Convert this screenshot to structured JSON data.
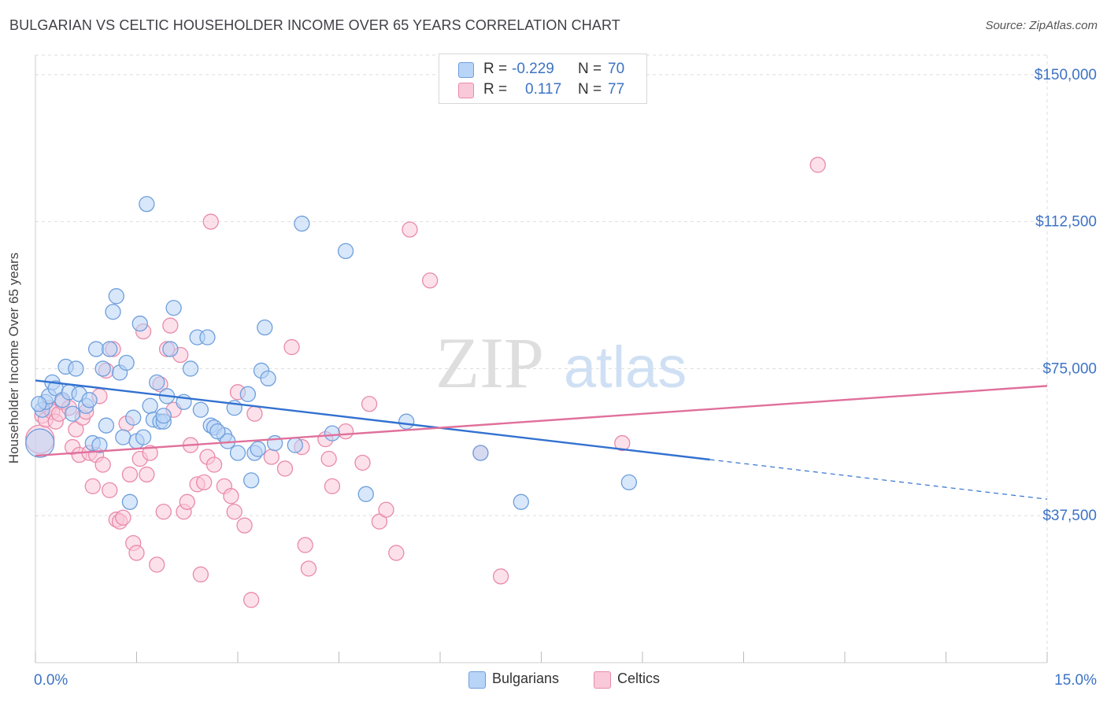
{
  "header": {
    "title": "BULGARIAN VS CELTIC HOUSEHOLDER INCOME OVER 65 YEARS CORRELATION CHART",
    "source": "Source: ZipAtlas.com"
  },
  "watermark": {
    "part1": "ZIP",
    "part2": "atlas"
  },
  "legend_top": {
    "rows": [
      {
        "r_label": "R =",
        "r_value": "-0.229",
        "n_label": "N =",
        "n_value": "70"
      },
      {
        "r_label": "R =",
        "r_value": "0.117",
        "n_label": "N =",
        "n_value": "77"
      }
    ]
  },
  "legend_bottom": {
    "items": [
      "Bulgarians",
      "Celtics"
    ]
  },
  "colors": {
    "blue_fill": "#b8d4f6",
    "blue_stroke": "#6f9fdc",
    "blue_line": "#3271d0",
    "pink_fill": "#f9c9d9",
    "pink_stroke": "#e98aab",
    "pink_line": "#e0709b",
    "tick_label": "#3d73c5",
    "grid": "#dddddd"
  },
  "chart_data": {
    "type": "scatter",
    "title": "BULGARIAN VS CELTIC HOUSEHOLDER INCOME OVER 65 YEARS CORRELATION CHART",
    "xlabel": "",
    "ylabel": "Householder Income Over 65 years",
    "xlim": [
      0,
      15
    ],
    "ylim": [
      0,
      155000
    ],
    "x_tick_labels": [
      {
        "value": 0,
        "label": "0.0%"
      },
      {
        "value": 15,
        "label": "15.0%"
      }
    ],
    "x_minor_ticks": [
      0,
      1.5,
      3,
      4.5,
      6,
      7.5,
      9,
      10.5,
      12,
      13.5,
      15
    ],
    "y_ticks": [
      {
        "value": 37500,
        "label": "$37,500"
      },
      {
        "value": 75000,
        "label": "$75,000"
      },
      {
        "value": 112500,
        "label": "$112,500"
      },
      {
        "value": 150000,
        "label": "$150,000"
      }
    ],
    "grid": true,
    "legend_position": "top-center",
    "series": [
      {
        "name": "Bulgarians",
        "color": "#6f9fdc",
        "R": -0.229,
        "N": 70,
        "trend": {
          "x": [
            0,
            10.0
          ],
          "y": [
            72000,
            51800
          ],
          "dashed_to_x": 15,
          "dashed_end_y": 41700
        },
        "points": [
          [
            0.02,
            56000
          ],
          [
            0.1,
            64500
          ],
          [
            0.15,
            66500
          ],
          [
            0.2,
            68000
          ],
          [
            0.25,
            71500
          ],
          [
            0.3,
            70000
          ],
          [
            0.4,
            67000
          ],
          [
            0.45,
            75500
          ],
          [
            0.5,
            69000
          ],
          [
            0.6,
            75000
          ],
          [
            0.65,
            68500
          ],
          [
            0.75,
            65500
          ],
          [
            0.8,
            67000
          ],
          [
            0.85,
            56000
          ],
          [
            0.9,
            80000
          ],
          [
            0.95,
            55500
          ],
          [
            1.0,
            75000
          ],
          [
            1.1,
            80000
          ],
          [
            1.15,
            89500
          ],
          [
            1.2,
            93500
          ],
          [
            1.25,
            74000
          ],
          [
            1.3,
            57500
          ],
          [
            1.35,
            76500
          ],
          [
            1.4,
            41000
          ],
          [
            1.45,
            62500
          ],
          [
            1.5,
            56500
          ],
          [
            1.55,
            86500
          ],
          [
            1.6,
            57500
          ],
          [
            1.65,
            117000
          ],
          [
            1.7,
            65500
          ],
          [
            1.75,
            62000
          ],
          [
            1.8,
            71500
          ],
          [
            1.85,
            61500
          ],
          [
            1.9,
            61500
          ],
          [
            1.95,
            68000
          ],
          [
            2.0,
            80000
          ],
          [
            2.05,
            90500
          ],
          [
            2.2,
            66500
          ],
          [
            2.3,
            75000
          ],
          [
            2.4,
            83000
          ],
          [
            2.45,
            64500
          ],
          [
            2.55,
            83000
          ],
          [
            2.6,
            60500
          ],
          [
            2.65,
            60000
          ],
          [
            2.8,
            58000
          ],
          [
            2.85,
            56500
          ],
          [
            2.95,
            65000
          ],
          [
            3.0,
            53500
          ],
          [
            3.15,
            68500
          ],
          [
            3.2,
            46500
          ],
          [
            3.25,
            53500
          ],
          [
            3.3,
            54500
          ],
          [
            3.35,
            74500
          ],
          [
            3.4,
            85500
          ],
          [
            3.45,
            72500
          ],
          [
            3.55,
            56000
          ],
          [
            3.85,
            55500
          ],
          [
            3.95,
            112000
          ],
          [
            4.4,
            58500
          ],
          [
            4.6,
            105000
          ],
          [
            4.9,
            43000
          ],
          [
            5.5,
            61500
          ],
          [
            6.6,
            53500
          ],
          [
            7.2,
            41000
          ],
          [
            8.8,
            46000
          ],
          [
            0.55,
            63500
          ],
          [
            1.9,
            63000
          ],
          [
            2.7,
            59000
          ],
          [
            0.05,
            66000
          ],
          [
            1.05,
            60500
          ]
        ]
      },
      {
        "name": "Celtics",
        "color": "#e98aab",
        "R": 0.117,
        "N": 77,
        "trend": {
          "x": [
            0,
            15
          ],
          "y": [
            52800,
            70600
          ]
        },
        "points": [
          [
            0.02,
            57000
          ],
          [
            0.1,
            63000
          ],
          [
            0.15,
            62000
          ],
          [
            0.2,
            65000
          ],
          [
            0.25,
            64000
          ],
          [
            0.3,
            61500
          ],
          [
            0.35,
            63500
          ],
          [
            0.4,
            66500
          ],
          [
            0.5,
            65000
          ],
          [
            0.55,
            55000
          ],
          [
            0.6,
            59500
          ],
          [
            0.65,
            53000
          ],
          [
            0.7,
            62500
          ],
          [
            0.75,
            64000
          ],
          [
            0.8,
            53500
          ],
          [
            0.85,
            45000
          ],
          [
            0.9,
            53000
          ],
          [
            0.95,
            68000
          ],
          [
            1.0,
            50500
          ],
          [
            1.05,
            74500
          ],
          [
            1.1,
            44000
          ],
          [
            1.15,
            80000
          ],
          [
            1.2,
            36500
          ],
          [
            1.25,
            36000
          ],
          [
            1.3,
            37000
          ],
          [
            1.35,
            61000
          ],
          [
            1.4,
            48000
          ],
          [
            1.45,
            30500
          ],
          [
            1.5,
            28000
          ],
          [
            1.55,
            52000
          ],
          [
            1.6,
            84500
          ],
          [
            1.65,
            48000
          ],
          [
            1.7,
            53500
          ],
          [
            1.8,
            25000
          ],
          [
            1.85,
            71000
          ],
          [
            1.9,
            38500
          ],
          [
            1.95,
            80000
          ],
          [
            2.0,
            86000
          ],
          [
            2.05,
            64500
          ],
          [
            2.15,
            78500
          ],
          [
            2.2,
            38500
          ],
          [
            2.25,
            41000
          ],
          [
            2.3,
            55500
          ],
          [
            2.4,
            45500
          ],
          [
            2.45,
            22500
          ],
          [
            2.5,
            46000
          ],
          [
            2.55,
            52500
          ],
          [
            2.6,
            112500
          ],
          [
            2.65,
            50500
          ],
          [
            2.8,
            45000
          ],
          [
            2.9,
            42500
          ],
          [
            2.95,
            38500
          ],
          [
            3.0,
            69000
          ],
          [
            3.1,
            35000
          ],
          [
            3.2,
            16000
          ],
          [
            3.25,
            63500
          ],
          [
            3.5,
            52500
          ],
          [
            3.7,
            49500
          ],
          [
            3.8,
            80500
          ],
          [
            3.95,
            55000
          ],
          [
            4.0,
            30000
          ],
          [
            4.05,
            24000
          ],
          [
            4.3,
            57000
          ],
          [
            4.35,
            52000
          ],
          [
            4.4,
            45000
          ],
          [
            4.6,
            59000
          ],
          [
            4.85,
            51000
          ],
          [
            4.95,
            66000
          ],
          [
            5.1,
            36000
          ],
          [
            5.2,
            39000
          ],
          [
            5.35,
            28000
          ],
          [
            5.55,
            110500
          ],
          [
            5.85,
            97500
          ],
          [
            6.6,
            53500
          ],
          [
            6.9,
            22000
          ],
          [
            8.7,
            56000
          ],
          [
            11.6,
            127000
          ]
        ]
      }
    ]
  }
}
